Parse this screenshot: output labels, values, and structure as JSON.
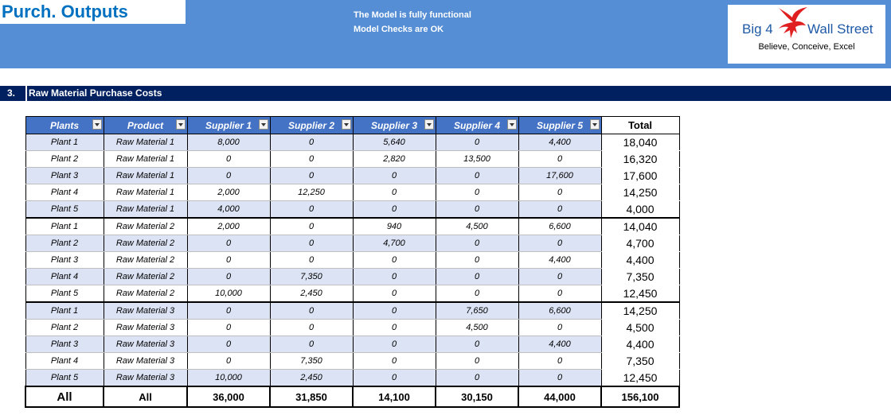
{
  "header": {
    "title": "Purch. Outputs",
    "status_line1": "The Model is fully functional",
    "status_line2": "Model Checks are OK",
    "logo_left": "Big 4",
    "logo_right": "Wall Street",
    "logo_tagline": "Believe, Conceive, Excel"
  },
  "section": {
    "number": "3.",
    "title": "Raw Material Purchase Costs"
  },
  "colors": {
    "banner": "#558ED5",
    "section_bar": "#002060",
    "table_header": "#4472C4",
    "row_band": "#DCE3F4",
    "title_text": "#0070C0",
    "logo_red": "#E02020"
  },
  "table": {
    "headers": [
      "Plants",
      "Product",
      "Supplier 1",
      "Supplier 2",
      "Supplier 3",
      "Supplier 4",
      "Supplier 5",
      "Total"
    ],
    "rows": [
      [
        "Plant 1",
        "Raw Material 1",
        "8,000",
        "0",
        "5,640",
        "0",
        "4,400",
        "18,040"
      ],
      [
        "Plant 2",
        "Raw Material 1",
        "0",
        "0",
        "2,820",
        "13,500",
        "0",
        "16,320"
      ],
      [
        "Plant 3",
        "Raw Material 1",
        "0",
        "0",
        "0",
        "0",
        "17,600",
        "17,600"
      ],
      [
        "Plant 4",
        "Raw Material 1",
        "2,000",
        "12,250",
        "0",
        "0",
        "0",
        "14,250"
      ],
      [
        "Plant 5",
        "Raw Material 1",
        "4,000",
        "0",
        "0",
        "0",
        "0",
        "4,000"
      ],
      [
        "Plant 1",
        "Raw Material 2",
        "2,000",
        "0",
        "940",
        "4,500",
        "6,600",
        "14,040"
      ],
      [
        "Plant 2",
        "Raw Material 2",
        "0",
        "0",
        "4,700",
        "0",
        "0",
        "4,700"
      ],
      [
        "Plant 3",
        "Raw Material 2",
        "0",
        "0",
        "0",
        "0",
        "4,400",
        "4,400"
      ],
      [
        "Plant 4",
        "Raw Material 2",
        "0",
        "7,350",
        "0",
        "0",
        "0",
        "7,350"
      ],
      [
        "Plant 5",
        "Raw Material 2",
        "10,000",
        "2,450",
        "0",
        "0",
        "0",
        "12,450"
      ],
      [
        "Plant 1",
        "Raw Material 3",
        "0",
        "0",
        "0",
        "7,650",
        "6,600",
        "14,250"
      ],
      [
        "Plant 2",
        "Raw Material 3",
        "0",
        "0",
        "0",
        "4,500",
        "0",
        "4,500"
      ],
      [
        "Plant 3",
        "Raw Material 3",
        "0",
        "0",
        "0",
        "0",
        "4,400",
        "4,400"
      ],
      [
        "Plant 4",
        "Raw Material 3",
        "0",
        "7,350",
        "0",
        "0",
        "0",
        "7,350"
      ],
      [
        "Plant 5",
        "Raw Material 3",
        "10,000",
        "2,450",
        "0",
        "0",
        "0",
        "12,450"
      ]
    ],
    "totals": [
      "All",
      "All",
      "36,000",
      "31,850",
      "14,100",
      "30,150",
      "44,000",
      "156,100"
    ]
  }
}
